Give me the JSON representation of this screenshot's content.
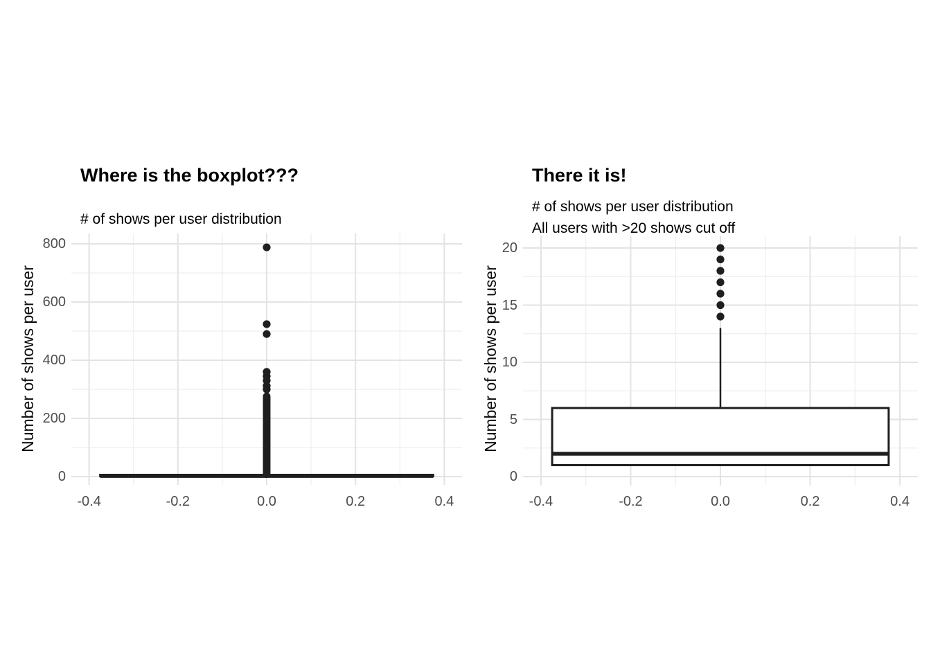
{
  "figure": {
    "background": "#ffffff"
  },
  "style": {
    "point_color": "#1f1f1f",
    "box_stroke": "#1f1f1f",
    "box_fill": "#ffffff",
    "median_color": "#1f1f1f",
    "grid_major": "#e3e3e3",
    "grid_minor": "#eeeeee",
    "axis_text_color": "#4d4d4d",
    "title_color": "#000000"
  },
  "chart_data": [
    {
      "type": "boxplot",
      "title": "Where is the boxplot???",
      "subtitle": "# of shows per user distribution",
      "xlabel": "",
      "ylabel": "Number of shows per user",
      "legend": "none",
      "grid": true,
      "x_tick_labels": [
        "-0.4",
        "-0.2",
        "0.0",
        "0.2",
        "0.4"
      ],
      "x_tick_values": [
        -0.4,
        -0.2,
        0.0,
        0.2,
        0.4
      ],
      "x_minor_values": [
        -0.3,
        -0.1,
        0.1,
        0.3
      ],
      "xlim": [
        -0.44,
        0.44
      ],
      "y_tick_labels": [
        "0",
        "200",
        "400",
        "600",
        "800"
      ],
      "y_tick_values": [
        0,
        200,
        400,
        600,
        800
      ],
      "y_minor_values": [
        100,
        300,
        500,
        700
      ],
      "ylim": [
        0,
        800
      ],
      "box": {
        "x": 0,
        "width": 0.75,
        "q1": 1,
        "median": 2,
        "q3": 6,
        "whisker_low": 1,
        "whisker_high": 13
      },
      "outliers": [
        300,
        312,
        330,
        345,
        360,
        490,
        524,
        788
      ],
      "outlier_column": {
        "from": 8,
        "to": 278,
        "step": 4
      }
    },
    {
      "type": "boxplot",
      "title": "There it is!",
      "subtitle": "# of shows per user distribution\nAll users with >20 shows cut off",
      "xlabel": "",
      "ylabel": "Number of shows per user",
      "legend": "none",
      "grid": true,
      "x_tick_labels": [
        "-0.4",
        "-0.2",
        "0.0",
        "0.2",
        "0.4"
      ],
      "x_tick_values": [
        -0.4,
        -0.2,
        0.0,
        0.2,
        0.4
      ],
      "x_minor_values": [
        -0.3,
        -0.1,
        0.1,
        0.3
      ],
      "xlim": [
        -0.44,
        0.44
      ],
      "y_tick_labels": [
        "0",
        "5",
        "10",
        "15",
        "20"
      ],
      "y_tick_values": [
        0,
        5,
        10,
        15,
        20
      ],
      "y_minor_values": [
        2.5,
        7.5,
        12.5,
        17.5
      ],
      "ylim": [
        0,
        20
      ],
      "box": {
        "x": 0,
        "width": 0.75,
        "q1": 1,
        "median": 2,
        "q3": 6,
        "whisker_low": 1,
        "whisker_high": 13
      },
      "outliers": [
        14,
        15,
        16,
        17,
        18,
        19,
        20
      ],
      "outlier_column": null
    }
  ]
}
